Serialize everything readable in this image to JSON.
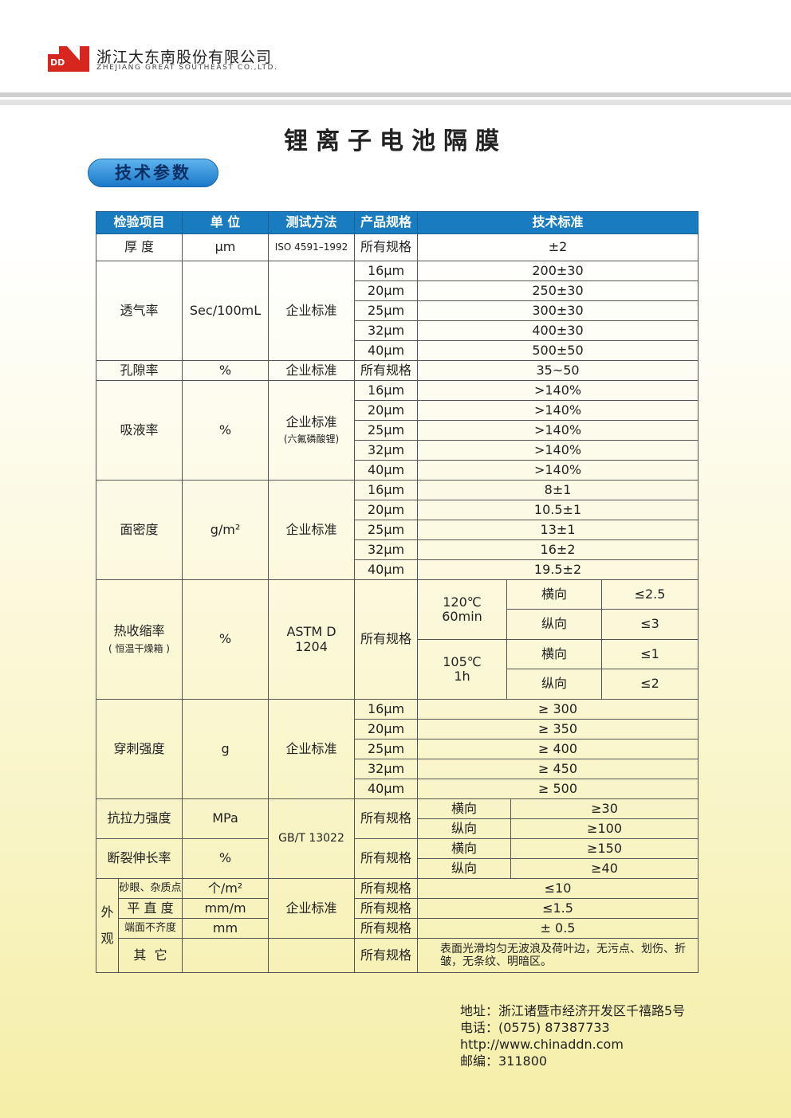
{
  "company": {
    "logo": "DDN",
    "name_cn": "浙江大东南股份有限公司",
    "name_en": "ZHEJIANG GREAT SOUTHEAST CO.,LTD."
  },
  "title": "锂离子电池隔膜",
  "section": "技术参数",
  "colors": {
    "header_blue": "#1a7cc0",
    "logo_red": "#d7261e"
  },
  "table": {
    "headers": [
      "检验项目",
      "单 位",
      "测试方法",
      "产品规格",
      "技术标准"
    ],
    "thickness": {
      "item": "厚 度",
      "unit": "μm",
      "method": "ISO 4591–1992",
      "spec": "所有规格",
      "value": "±2"
    },
    "permeability": {
      "item": "透气率",
      "unit": "Sec/100mL",
      "method": "企业标准",
      "specs": [
        "16μm",
        "20μm",
        "25μm",
        "32μm",
        "40μm"
      ],
      "values": [
        "200±30",
        "250±30",
        "300±30",
        "400±30",
        "500±50"
      ]
    },
    "porosity": {
      "item": "孔隙率",
      "unit": "%",
      "method": "企业标准",
      "spec": "所有规格",
      "value": "35~50"
    },
    "absorption": {
      "item": "吸液率",
      "unit": "%",
      "method": "企业标准",
      "method_note": "(六氟磷酸锂)",
      "specs": [
        "16μm",
        "20μm",
        "25μm",
        "32μm",
        "40μm"
      ],
      "values": [
        ">140%",
        ">140%",
        ">140%",
        ">140%",
        ">140%"
      ]
    },
    "areal_density": {
      "item": "面密度",
      "unit": "g/m²",
      "method": "企业标准",
      "specs": [
        "16μm",
        "20μm",
        "25μm",
        "32μm",
        "40μm"
      ],
      "values": [
        "8±1",
        "10.5±1",
        "13±1",
        "16±2",
        "19.5±2"
      ]
    },
    "shrinkage": {
      "item": "热收缩率",
      "note": "( 恒温干燥箱 )",
      "unit": "%",
      "method": "ASTM D 1204",
      "spec": "所有规格",
      "conditions": [
        {
          "temp": "120℃",
          "time": "60min",
          "dirs": [
            "横向",
            "纵向"
          ],
          "values": [
            "≤2.5",
            "≤3"
          ]
        },
        {
          "temp": "105℃",
          "time": "1h",
          "dirs": [
            "横向",
            "纵向"
          ],
          "values": [
            "≤1",
            "≤2"
          ]
        }
      ]
    },
    "puncture": {
      "item": "穿刺强度",
      "unit": "g",
      "method": "企业标准",
      "specs": [
        "16μm",
        "20μm",
        "25μm",
        "32μm",
        "40μm"
      ],
      "values": [
        "≥ 300",
        "≥ 350",
        "≥ 400",
        "≥ 450",
        "≥ 500"
      ]
    },
    "mech_method": "GB/T 13022",
    "tensile": {
      "item": "抗拉力强度",
      "unit": "MPa",
      "spec": "所有规格",
      "dirs": [
        "横向",
        "纵向"
      ],
      "values": [
        "≥30",
        "≥100"
      ]
    },
    "elongation": {
      "item": "断裂伸长率",
      "unit": "%",
      "spec": "所有规格",
      "dirs": [
        "横向",
        "纵向"
      ],
      "values": [
        "≥150",
        "≥40"
      ]
    },
    "appearance": {
      "group": [
        "外",
        "观"
      ],
      "method": "企业标准",
      "rows": [
        {
          "item": "砂眼、杂质点",
          "unit": "个/m²",
          "spec": "所有规格",
          "value": "≤10"
        },
        {
          "item": "平 直 度",
          "unit": "mm/m",
          "spec": "所有规格",
          "value": "≤1.5"
        },
        {
          "item": "端面不齐度",
          "unit": "mm",
          "spec": "所有规格",
          "value": "± 0.5"
        },
        {
          "item": "其  它",
          "unit": "",
          "spec": "所有规格",
          "value": "表面光滑均匀无波浪及荷叶边，无污点、划伤、折皱，无条纹、明暗区。"
        }
      ]
    }
  },
  "footer": {
    "address": "地址：浙江诸暨市经济开发区千禧路5号",
    "phone": "电话：(0575) 87387733",
    "url": "http://www.chinaddn.com",
    "zip": "邮编：311800"
  }
}
